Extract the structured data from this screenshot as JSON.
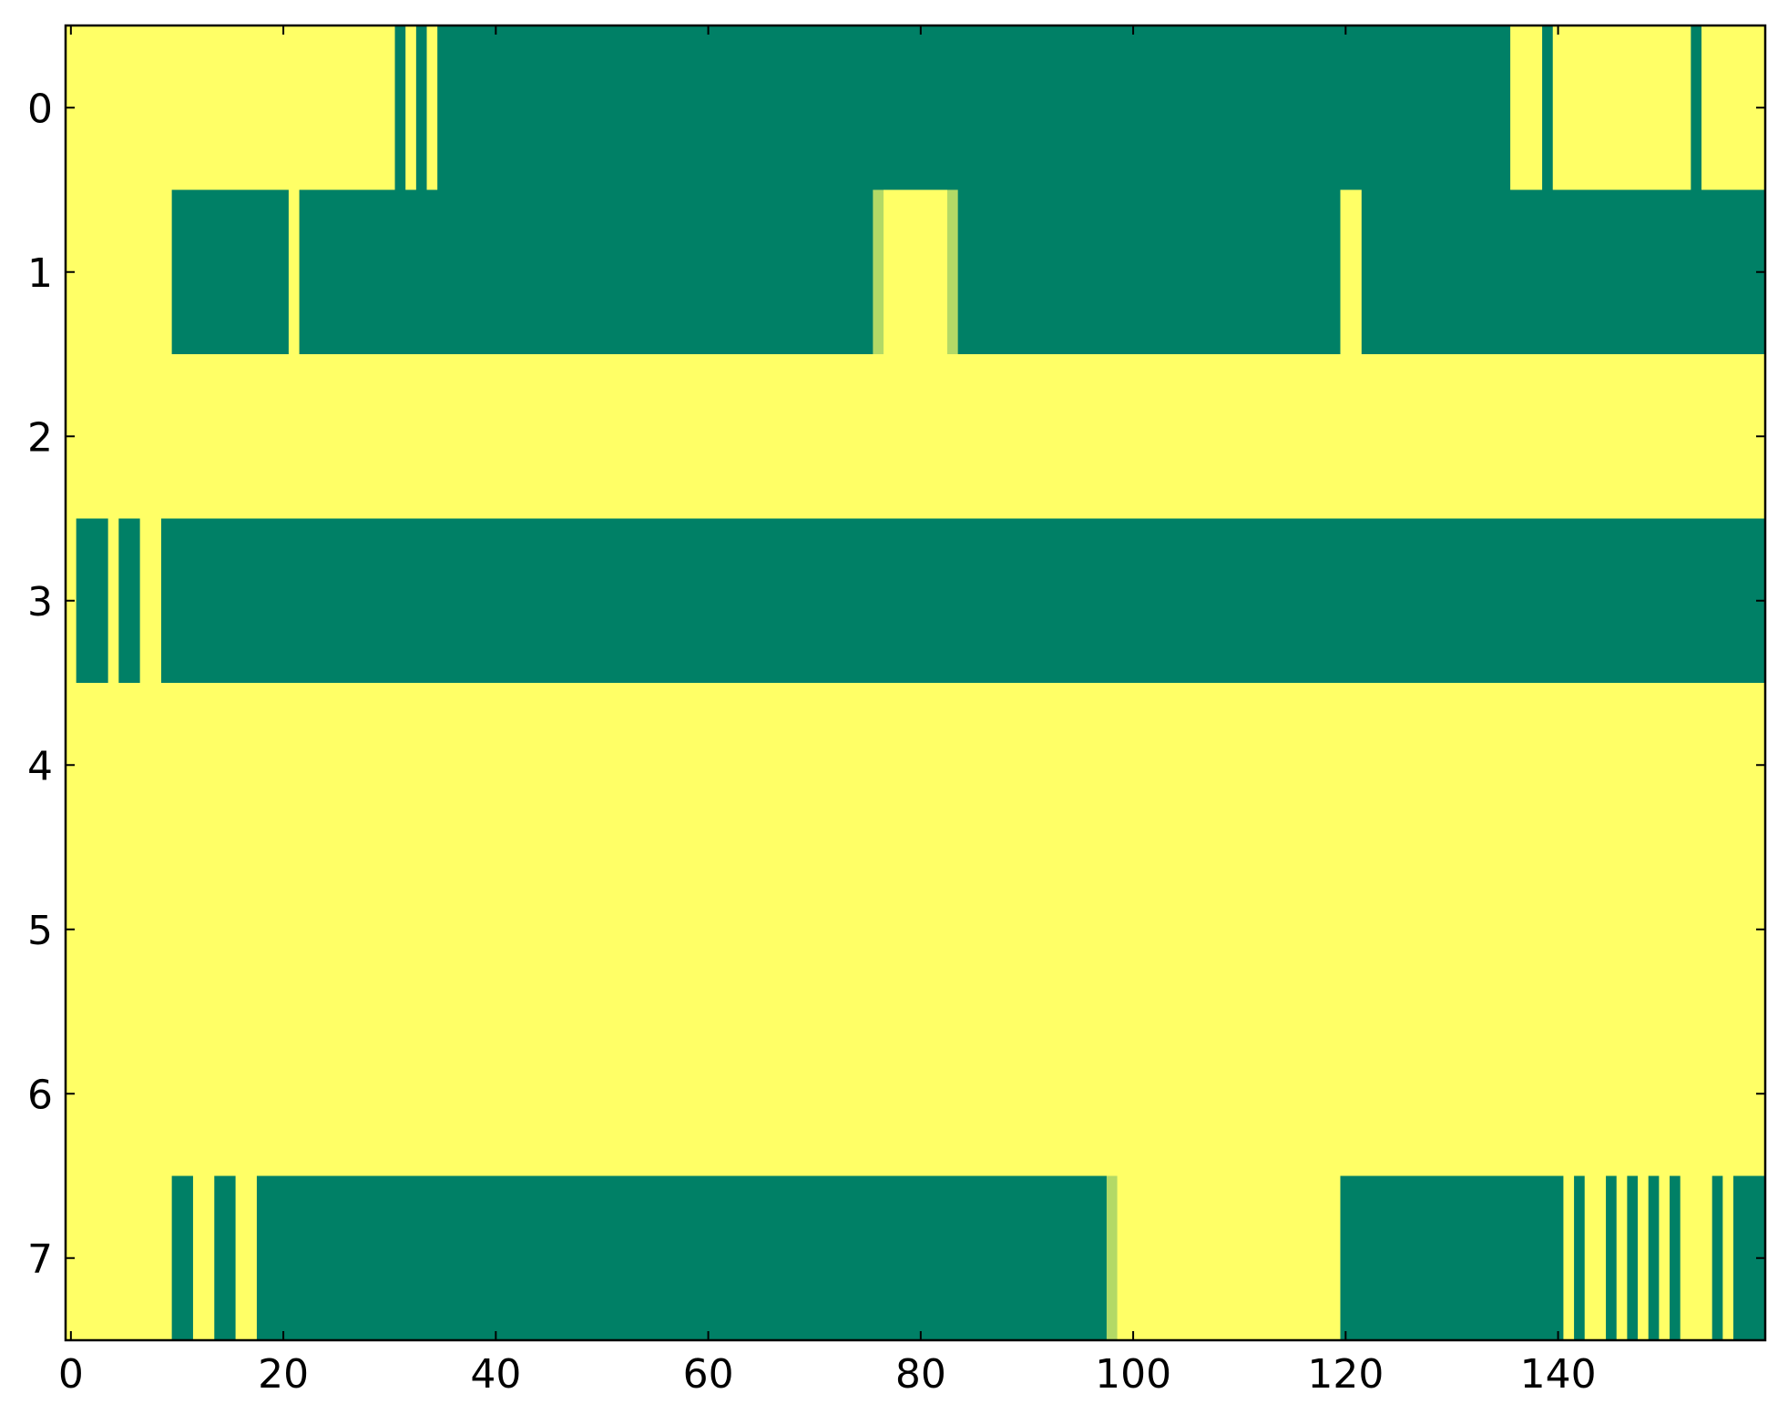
{
  "chart_data": {
    "type": "heatmap",
    "colormap": "summer",
    "xlim": [
      -0.5,
      159.5
    ],
    "ylim": [
      7.5,
      -0.5
    ],
    "xticks": [
      0,
      20,
      40,
      60,
      80,
      100,
      120,
      140
    ],
    "yticks": [
      0,
      1,
      2,
      3,
      4,
      5,
      6,
      7
    ],
    "values": [
      [
        1,
        1,
        1,
        1,
        1,
        1,
        1,
        1,
        1,
        1,
        1,
        1,
        1,
        1,
        1,
        1,
        1,
        1,
        1,
        1,
        1,
        1,
        1,
        1,
        1,
        1,
        1,
        1,
        1,
        1,
        1,
        0,
        1,
        0,
        1,
        0,
        0,
        0,
        0,
        0,
        0,
        0,
        0,
        0,
        0,
        0,
        0,
        0,
        0,
        0,
        0,
        0,
        0,
        0,
        0,
        0,
        0,
        0,
        0,
        0,
        0,
        0,
        0,
        0,
        0,
        0,
        0,
        0,
        0,
        0,
        0,
        0,
        0,
        0,
        0,
        0,
        0,
        0,
        0,
        0,
        0,
        0,
        0,
        0,
        0,
        0,
        0,
        0,
        0,
        0,
        0,
        0,
        0,
        0,
        0,
        0,
        0,
        0,
        0,
        0,
        0,
        0,
        0,
        0,
        0,
        0,
        0,
        0,
        0,
        0,
        0,
        0,
        0,
        0,
        0,
        0,
        0,
        0,
        0,
        0,
        0,
        0,
        0,
        0,
        0,
        0,
        0,
        0,
        0,
        0,
        0,
        0,
        0,
        0,
        0,
        0,
        1,
        1,
        1,
        0,
        1,
        1,
        1,
        1,
        1,
        1,
        1,
        1,
        1,
        1,
        1,
        1,
        1,
        0,
        1,
        1,
        1,
        1,
        1,
        1
      ],
      [
        1,
        1,
        1,
        1,
        1,
        1,
        1,
        1,
        1,
        1,
        0,
        0,
        0,
        0,
        0,
        0,
        0,
        0,
        0,
        0,
        0,
        1,
        0,
        0,
        0,
        0,
        0,
        0,
        0,
        0,
        0,
        0,
        0,
        0,
        0,
        0,
        0,
        0,
        0,
        0,
        0,
        0,
        0,
        0,
        0,
        0,
        0,
        0,
        0,
        0,
        0,
        0,
        0,
        0,
        0,
        0,
        0,
        0,
        0,
        0,
        0,
        0,
        0,
        0,
        0,
        0,
        0,
        0,
        0,
        0,
        0,
        0,
        0,
        0,
        0,
        0,
        0.7,
        1,
        1,
        1,
        1,
        1,
        1,
        0.7,
        0,
        0,
        0,
        0,
        0,
        0,
        0,
        0,
        0,
        0,
        0,
        0,
        0,
        0,
        0,
        0,
        0,
        0,
        0,
        0,
        0,
        0,
        0,
        0,
        0,
        0,
        0,
        0,
        0,
        0,
        0,
        0,
        0,
        0,
        0,
        0,
        1,
        1,
        0,
        0,
        0,
        0,
        0,
        0,
        0,
        0,
        0,
        0,
        0,
        0,
        0,
        0,
        0,
        0,
        0,
        0,
        0,
        0,
        0,
        0,
        0,
        0,
        0,
        0,
        0,
        0,
        0,
        0,
        0,
        0,
        0,
        0,
        0,
        0,
        0,
        0
      ],
      [
        1,
        1,
        1,
        1,
        1,
        1,
        1,
        1,
        1,
        1,
        1,
        1,
        1,
        1,
        1,
        1,
        1,
        1,
        1,
        1,
        1,
        1,
        1,
        1,
        1,
        1,
        1,
        1,
        1,
        1,
        1,
        1,
        1,
        1,
        1,
        1,
        1,
        1,
        1,
        1,
        1,
        1,
        1,
        1,
        1,
        1,
        1,
        1,
        1,
        1,
        1,
        1,
        1,
        1,
        1,
        1,
        1,
        1,
        1,
        1,
        1,
        1,
        1,
        1,
        1,
        1,
        1,
        1,
        1,
        1,
        1,
        1,
        1,
        1,
        1,
        1,
        1,
        1,
        1,
        1,
        1,
        1,
        1,
        1,
        1,
        1,
        1,
        1,
        1,
        1,
        1,
        1,
        1,
        1,
        1,
        1,
        1,
        1,
        1,
        1,
        1,
        1,
        1,
        1,
        1,
        1,
        1,
        1,
        1,
        1,
        1,
        1,
        1,
        1,
        1,
        1,
        1,
        1,
        1,
        1,
        1,
        1,
        1,
        1,
        1,
        1,
        1,
        1,
        1,
        1,
        1,
        1,
        1,
        1,
        1,
        1,
        1,
        1,
        1,
        1,
        1,
        1,
        1,
        1,
        1,
        1,
        1,
        1,
        1,
        1,
        1,
        1,
        1,
        1,
        1,
        1,
        1,
        1,
        1,
        1
      ],
      [
        1,
        0,
        0,
        0,
        1,
        0,
        0,
        1,
        1,
        0,
        0,
        0,
        0,
        0,
        0,
        0,
        0,
        0,
        0,
        0,
        0,
        0,
        0,
        0,
        0,
        0,
        0,
        0,
        0,
        0,
        0,
        0,
        0,
        0,
        0,
        0,
        0,
        0,
        0,
        0,
        0,
        0,
        0,
        0,
        0,
        0,
        0,
        0,
        0,
        0,
        0,
        0,
        0,
        0,
        0,
        0,
        0,
        0,
        0,
        0,
        0,
        0,
        0,
        0,
        0,
        0,
        0,
        0,
        0,
        0,
        0,
        0,
        0,
        0,
        0,
        0,
        0,
        0,
        0,
        0,
        0,
        0,
        0,
        0,
        0,
        0,
        0,
        0,
        0,
        0,
        0,
        0,
        0,
        0,
        0,
        0,
        0,
        0,
        0,
        0,
        0,
        0,
        0,
        0,
        0,
        0,
        0,
        0,
        0,
        0,
        0,
        0,
        0,
        0,
        0,
        0,
        0,
        0,
        0,
        0,
        0,
        0,
        0,
        0,
        0,
        0,
        0,
        0,
        0,
        0,
        0,
        0,
        0,
        0,
        0,
        0,
        0,
        0,
        0,
        0,
        0,
        0,
        0,
        0,
        0,
        0,
        0,
        0,
        0,
        0,
        0,
        0,
        0,
        0,
        0,
        0,
        0,
        0,
        0,
        0
      ],
      [
        1,
        1,
        1,
        1,
        1,
        1,
        1,
        1,
        1,
        1,
        1,
        1,
        1,
        1,
        1,
        1,
        1,
        1,
        1,
        1,
        1,
        1,
        1,
        1,
        1,
        1,
        1,
        1,
        1,
        1,
        1,
        1,
        1,
        1,
        1,
        1,
        1,
        1,
        1,
        1,
        1,
        1,
        1,
        1,
        1,
        1,
        1,
        1,
        1,
        1,
        1,
        1,
        1,
        1,
        1,
        1,
        1,
        1,
        1,
        1,
        1,
        1,
        1,
        1,
        1,
        1,
        1,
        1,
        1,
        1,
        1,
        1,
        1,
        1,
        1,
        1,
        1,
        1,
        1,
        1,
        1,
        1,
        1,
        1,
        1,
        1,
        1,
        1,
        1,
        1,
        1,
        1,
        1,
        1,
        1,
        1,
        1,
        1,
        1,
        1,
        1,
        1,
        1,
        1,
        1,
        1,
        1,
        1,
        1,
        1,
        1,
        1,
        1,
        1,
        1,
        1,
        1,
        1,
        1,
        1,
        1,
        1,
        1,
        1,
        1,
        1,
        1,
        1,
        1,
        1,
        1,
        1,
        1,
        1,
        1,
        1,
        1,
        1,
        1,
        1,
        1,
        1,
        1,
        1,
        1,
        1,
        1,
        1,
        1,
        1,
        1,
        1,
        1,
        1,
        1,
        1,
        1,
        1,
        1,
        1
      ],
      [
        1,
        1,
        1,
        1,
        1,
        1,
        1,
        1,
        1,
        1,
        1,
        1,
        1,
        1,
        1,
        1,
        1,
        1,
        1,
        1,
        1,
        1,
        1,
        1,
        1,
        1,
        1,
        1,
        1,
        1,
        1,
        1,
        1,
        1,
        1,
        1,
        1,
        1,
        1,
        1,
        1,
        1,
        1,
        1,
        1,
        1,
        1,
        1,
        1,
        1,
        1,
        1,
        1,
        1,
        1,
        1,
        1,
        1,
        1,
        1,
        1,
        1,
        1,
        1,
        1,
        1,
        1,
        1,
        1,
        1,
        1,
        1,
        1,
        1,
        1,
        1,
        1,
        1,
        1,
        1,
        1,
        1,
        1,
        1,
        1,
        1,
        1,
        1,
        1,
        1,
        1,
        1,
        1,
        1,
        1,
        1,
        1,
        1,
        1,
        1,
        1,
        1,
        1,
        1,
        1,
        1,
        1,
        1,
        1,
        1,
        1,
        1,
        1,
        1,
        1,
        1,
        1,
        1,
        1,
        1,
        1,
        1,
        1,
        1,
        1,
        1,
        1,
        1,
        1,
        1,
        1,
        1,
        1,
        1,
        1,
        1,
        1,
        1,
        1,
        1,
        1,
        1,
        1,
        1,
        1,
        1,
        1,
        1,
        1,
        1,
        1,
        1,
        1,
        1,
        1,
        1,
        1,
        1,
        1,
        1
      ],
      [
        1,
        1,
        1,
        1,
        1,
        1,
        1,
        1,
        1,
        1,
        1,
        1,
        1,
        1,
        1,
        1,
        1,
        1,
        1,
        1,
        1,
        1,
        1,
        1,
        1,
        1,
        1,
        1,
        1,
        1,
        1,
        1,
        1,
        1,
        1,
        1,
        1,
        1,
        1,
        1,
        1,
        1,
        1,
        1,
        1,
        1,
        1,
        1,
        1,
        1,
        1,
        1,
        1,
        1,
        1,
        1,
        1,
        1,
        1,
        1,
        1,
        1,
        1,
        1,
        1,
        1,
        1,
        1,
        1,
        1,
        1,
        1,
        1,
        1,
        1,
        1,
        1,
        1,
        1,
        1,
        1,
        1,
        1,
        1,
        1,
        1,
        1,
        1,
        1,
        1,
        1,
        1,
        1,
        1,
        1,
        1,
        1,
        1,
        1,
        1,
        1,
        1,
        1,
        1,
        1,
        1,
        1,
        1,
        1,
        1,
        1,
        1,
        1,
        1,
        1,
        1,
        1,
        1,
        1,
        1,
        1,
        1,
        1,
        1,
        1,
        1,
        1,
        1,
        1,
        1,
        1,
        1,
        1,
        1,
        1,
        1,
        1,
        1,
        1,
        1,
        1,
        1,
        1,
        1,
        1,
        1,
        1,
        1,
        1,
        1,
        1,
        1,
        1,
        1,
        1,
        1,
        1,
        1,
        1,
        1
      ],
      [
        1,
        1,
        1,
        1,
        1,
        1,
        1,
        1,
        1,
        1,
        0,
        0,
        1,
        1,
        0,
        0,
        1,
        1,
        0,
        0,
        0,
        0,
        0,
        0,
        0,
        0,
        0,
        0,
        0,
        0,
        0,
        0,
        0,
        0,
        0,
        0,
        0,
        0,
        0,
        0,
        0,
        0,
        0,
        0,
        0,
        0,
        0,
        0,
        0,
        0,
        0,
        0,
        0,
        0,
        0,
        0,
        0,
        0,
        0,
        0,
        0,
        0,
        0,
        0,
        0,
        0,
        0,
        0,
        0,
        0,
        0,
        0,
        0,
        0,
        0,
        0,
        0,
        0,
        0,
        0,
        0,
        0,
        0,
        0,
        0,
        0,
        0,
        0,
        0,
        0,
        0,
        0,
        0,
        0,
        0,
        0,
        0,
        0,
        0.7,
        1,
        1,
        1,
        1,
        1,
        1,
        1,
        1,
        1,
        1,
        1,
        1,
        1,
        1,
        1,
        1,
        1,
        1,
        1,
        1,
        1,
        0,
        0,
        0,
        0,
        0,
        0,
        0,
        0,
        0,
        0,
        0,
        0,
        0,
        0,
        0,
        0,
        0,
        0,
        0,
        0,
        0,
        1,
        0,
        1,
        1,
        0,
        1,
        0,
        1,
        0,
        1,
        0,
        1,
        1,
        1,
        0,
        1,
        0,
        0,
        0
      ]
    ]
  }
}
